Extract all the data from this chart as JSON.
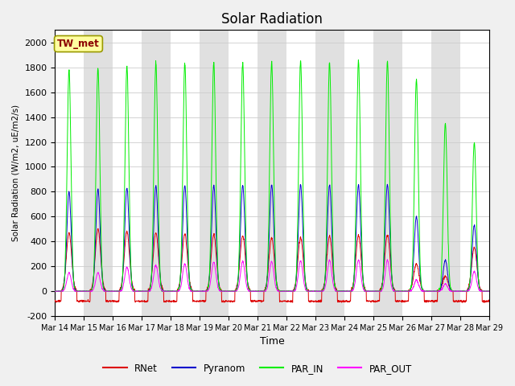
{
  "title": "Solar Radiation",
  "ylabel": "Solar Radiation (W/m2, uE/m2/s)",
  "xlabel": "Time",
  "ylim": [
    -200,
    2100
  ],
  "yticks": [
    -200,
    0,
    200,
    400,
    600,
    800,
    1000,
    1200,
    1400,
    1600,
    1800,
    2000
  ],
  "legend_label": "TW_met",
  "series_labels": [
    "RNet",
    "Pyranom",
    "PAR_IN",
    "PAR_OUT"
  ],
  "series_colors": [
    "#dd0000",
    "#0000cc",
    "#00ee00",
    "#ff00ff"
  ],
  "background_color": "#f0f0f0",
  "plot_bg_color": "#e8e8e8",
  "n_days": 15,
  "start_day": 14,
  "points_per_day": 144,
  "par_in_peaks": [
    1780,
    1790,
    1810,
    1840,
    1840,
    1840,
    1840,
    1840,
    1850,
    1840,
    1850,
    1850,
    1700,
    1350,
    1200
  ],
  "pyranom_peaks": [
    800,
    820,
    830,
    850,
    850,
    850,
    850,
    855,
    855,
    855,
    855,
    860,
    600,
    250,
    530
  ],
  "rnet_peaks": [
    470,
    500,
    480,
    470,
    460,
    455,
    450,
    430,
    430,
    445,
    450,
    450,
    220,
    120,
    350
  ],
  "par_out_peaks": [
    150,
    150,
    195,
    210,
    220,
    235,
    240,
    240,
    245,
    250,
    250,
    250,
    90,
    60,
    160
  ],
  "rnet_night": -80,
  "grid_color": "#cccccc",
  "band_colors": [
    "#ffffff",
    "#e0e0e0"
  ]
}
